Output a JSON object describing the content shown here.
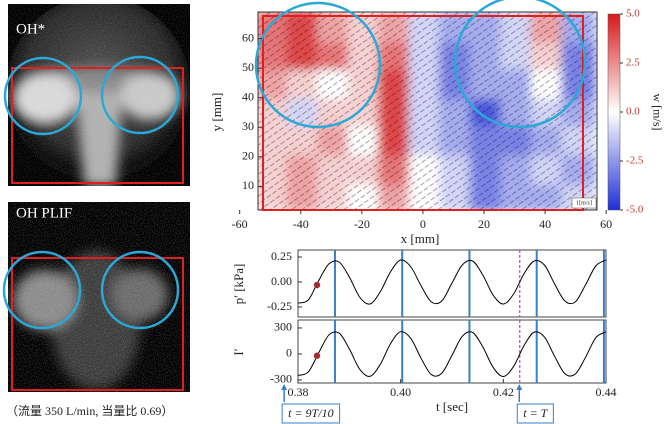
{
  "panels": {
    "oh_star": "OH*",
    "oh_plif": "OH PLIF"
  },
  "caption": "（流量 350 L/min, 当量比 0.69）",
  "annotations": [
    {
      "text": "t = 9T/10",
      "t": 0.3773
    },
    {
      "text": "t = T",
      "t": 0.4231
    }
  ],
  "chart_data": [
    {
      "type": "heatmap",
      "xlabel": "x [mm]",
      "ylabel": "y [mm]",
      "scale_label": "1[m/s]",
      "x": [
        -49,
        -39,
        -29,
        -19,
        -9,
        1,
        11,
        21,
        31,
        41,
        51
      ],
      "y": [
        7,
        16,
        26,
        36,
        45,
        55,
        64
      ],
      "values": [
        [
          1,
          2,
          1,
          0,
          2,
          0,
          -1,
          -3,
          -2,
          -2,
          -1
        ],
        [
          1,
          2,
          1,
          1,
          3,
          0,
          -1,
          -3,
          -2,
          -1,
          -2
        ],
        [
          1,
          1,
          2,
          0,
          4,
          -1,
          -2,
          -3,
          -3,
          -2,
          -1
        ],
        [
          1,
          -1,
          1,
          1,
          4,
          -1,
          -2,
          -4,
          -2,
          -1,
          -2
        ],
        [
          2,
          1,
          0,
          1,
          4,
          -1,
          -3,
          -2,
          -2,
          0,
          -3
        ],
        [
          3,
          4,
          3,
          1,
          3,
          -1,
          -3,
          -2,
          -1,
          1,
          -3
        ],
        [
          3,
          4,
          2,
          1,
          2,
          -1,
          -2,
          -2,
          -1,
          2,
          -2
        ]
      ],
      "xlim": [
        -54,
        57
      ],
      "ylim": [
        2,
        69
      ],
      "xticks": [
        -60,
        -40,
        -20,
        0,
        20,
        40,
        60
      ],
      "yticks": [
        10,
        20,
        30,
        40,
        50,
        60
      ],
      "colorbar": {
        "label": "w [m/s]",
        "clim": [
          -5,
          5
        ],
        "ticks": [
          {
            "value": 5,
            "label": "5.0"
          },
          2.5,
          {
            "value": 0,
            "label": "0.0"
          },
          -2.5,
          {
            "value": -5,
            "label": "-5.0"
          }
        ],
        "positive_color": "#d7191c",
        "negative_color": "#1f2fd6"
      }
    },
    {
      "type": "line",
      "ylabel": "p′ [kPa]",
      "x": [
        0.38,
        0.382,
        0.384,
        0.386,
        0.388,
        0.39,
        0.392,
        0.394,
        0.396,
        0.398,
        0.4,
        0.402,
        0.404,
        0.406,
        0.408,
        0.41,
        0.412,
        0.414,
        0.416,
        0.418,
        0.42,
        0.422,
        0.424,
        0.426,
        0.428,
        0.43,
        0.432,
        0.434,
        0.436,
        0.438,
        0.44
      ],
      "series": [
        {
          "color": "#000000",
          "values": [
            -0.21,
            -0.18,
            0.01,
            0.18,
            0.2,
            0.05,
            -0.15,
            -0.22,
            -0.1,
            0.1,
            0.22,
            0.15,
            -0.04,
            -0.2,
            -0.19,
            -0.01,
            0.17,
            0.21,
            0.07,
            -0.13,
            -0.22,
            -0.12,
            0.08,
            0.21,
            0.17,
            -0.02,
            -0.19,
            -0.2,
            -0.03,
            0.16,
            0.22
          ]
        }
      ],
      "xlim": [
        0.38,
        0.44
      ],
      "ylim": [
        -0.35,
        0.32
      ],
      "yticks": [
        0.25,
        {
          "value": 0,
          "label": "0.00"
        },
        -0.25
      ],
      "vlines": [
        0.3872,
        0.4003,
        0.4134,
        0.4265,
        0.4396
      ],
      "vline_color": "#3b7fc4",
      "dashed_line": 0.4232,
      "dashed_color": "#c040c0",
      "point": {
        "x": 0.3837,
        "y": -0.03,
        "color": "#a52a2a"
      }
    },
    {
      "type": "line",
      "ylabel": "I′",
      "xlabel": "t [sec]",
      "x": [
        0.38,
        0.382,
        0.384,
        0.386,
        0.388,
        0.39,
        0.392,
        0.394,
        0.396,
        0.398,
        0.4,
        0.402,
        0.404,
        0.406,
        0.408,
        0.41,
        0.412,
        0.414,
        0.416,
        0.418,
        0.42,
        0.422,
        0.424,
        0.426,
        0.428,
        0.43,
        0.432,
        0.434,
        0.436,
        0.438,
        0.44
      ],
      "series": [
        {
          "color": "#000000",
          "values": [
            -247,
            -207,
            9,
            218,
            241,
            59,
            -174,
            -258,
            -123,
            117,
            257,
            178,
            -53,
            -239,
            -222,
            -15,
            204,
            249,
            82,
            -154,
            -260,
            -144,
            94,
            252,
            196,
            -28,
            -228,
            -233,
            -40,
            187,
            255
          ]
        }
      ],
      "xlim": [
        0.38,
        0.44
      ],
      "ylim": [
        -335,
        392
      ],
      "yticks": [
        300,
        0,
        -300
      ],
      "xticks": [
        0.38,
        {
          "value": 0.4,
          "label": "0.40"
        },
        0.42,
        0.44
      ],
      "vlines": [
        0.3872,
        0.4003,
        0.4134,
        0.4265,
        0.4396
      ],
      "vline_color": "#3b7fc4",
      "dashed_line": 0.4232,
      "dashed_color": "#c040c0",
      "point": {
        "x": 0.3837,
        "y": -20,
        "color": "#a52a2a"
      }
    }
  ]
}
